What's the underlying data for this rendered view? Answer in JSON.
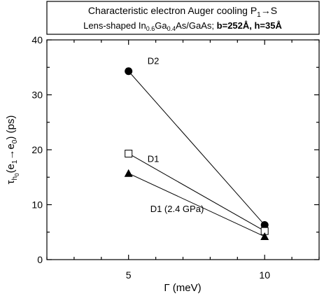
{
  "title_box": {
    "line1_main": "Characteristic electron Auger cooling P",
    "line1_sub": "1",
    "line1_arrow": "→",
    "line1_end": "S",
    "line2_pre": "Lens-shaped In",
    "line2_sub1": "0.6",
    "line2_mid": "Ga",
    "line2_sub2": "0.4",
    "line2_post": "As/GaAs; ",
    "line2_bold": "b=252Å, h=35Å"
  },
  "axes": {
    "xlabel": "Γ (meV)",
    "ylabel_tau": "τ",
    "ylabel_sub_h": "h",
    "ylabel_sub_0": "0",
    "ylabel_paren_open": "(e",
    "ylabel_sub_1": "1",
    "ylabel_arrow": "→e",
    "ylabel_sub_0b": "0",
    "ylabel_units": ") (ps)"
  },
  "chart_data": {
    "type": "line",
    "xlabel": "Γ (meV)",
    "ylabel": "τh0(e1→e0) (ps)",
    "xlim": [
      2,
      12
    ],
    "ylim": [
      0,
      40
    ],
    "xticks": [
      5,
      10
    ],
    "yticks": [
      0,
      10,
      20,
      30,
      40
    ],
    "series": [
      {
        "name": "D2",
        "marker": "filled-circle",
        "x": [
          5,
          10
        ],
        "y": [
          34.3,
          6.3
        ]
      },
      {
        "name": "D1",
        "marker": "open-square",
        "x": [
          5,
          10
        ],
        "y": [
          19.3,
          5.2
        ]
      },
      {
        "name": "D1 (2.4 GPa)",
        "marker": "filled-triangle",
        "x": [
          5,
          10
        ],
        "y": [
          15.7,
          4.2
        ]
      }
    ]
  }
}
